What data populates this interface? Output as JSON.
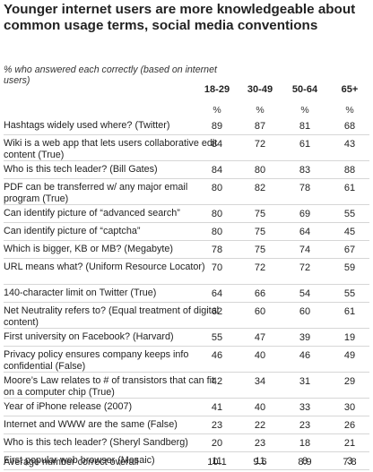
{
  "chart_data": {
    "type": "table",
    "title": "Younger internet users are more knowledgeable about common usage terms, social media conventions",
    "subtitle": "% who answered each correctly (based on internet users)",
    "columns": [
      "18-29",
      "30-49",
      "50-64",
      "65+"
    ],
    "unit_row": [
      "%",
      "%",
      "%",
      "%"
    ],
    "rows": [
      {
        "label": "Hashtags widely used where? (Twitter)",
        "values": [
          89,
          87,
          81,
          68
        ]
      },
      {
        "label": "Wiki is a web app that lets users collaborative edit content (True)",
        "values": [
          84,
          72,
          61,
          43
        ]
      },
      {
        "label": "Who is this tech leader? (Bill Gates)",
        "values": [
          84,
          80,
          83,
          88
        ]
      },
      {
        "label": "PDF can be transferred w/ any major email program (True)",
        "values": [
          80,
          82,
          78,
          61
        ]
      },
      {
        "label": "Can identify picture of “advanced search”",
        "values": [
          80,
          75,
          69,
          55
        ]
      },
      {
        "label": "Can identify picture of “captcha”",
        "values": [
          80,
          75,
          64,
          45
        ]
      },
      {
        "label": "Which is bigger, KB or MB? (Megabyte)",
        "values": [
          78,
          75,
          74,
          67
        ]
      },
      {
        "label": "URL means what? (Uniform Resource Locator)",
        "values": [
          70,
          72,
          72,
          59
        ]
      },
      {
        "label": "140-character limit on Twitter (True)",
        "values": [
          64,
          66,
          54,
          55
        ]
      },
      {
        "label": "Net Neutrality refers to? (Equal treatment of digital content)",
        "values": [
          62,
          60,
          60,
          61
        ]
      },
      {
        "label": "First university on Facebook? (Harvard)",
        "values": [
          55,
          47,
          39,
          19
        ]
      },
      {
        "label": "Privacy policy ensures company keeps info confidential (False)",
        "values": [
          46,
          40,
          46,
          49
        ]
      },
      {
        "label": "Moore’s Law relates to # of transistors that can fit on a computer chip (True)",
        "values": [
          42,
          34,
          31,
          29
        ]
      },
      {
        "label": "Year of iPhone release (2007)",
        "values": [
          41,
          40,
          33,
          30
        ]
      },
      {
        "label": "Internet and WWW are the same (False)",
        "values": [
          23,
          22,
          23,
          26
        ]
      },
      {
        "label": "Who is this tech leader? (Sheryl Sandberg)",
        "values": [
          20,
          23,
          18,
          21
        ]
      },
      {
        "label": "First popular web browser (Mosaic)",
        "values": [
          11,
          11,
          8,
          3
        ]
      }
    ],
    "average": {
      "label": "Average number correct overall",
      "values": [
        "10.1",
        "9.6",
        "8.9",
        "7.8"
      ]
    }
  }
}
